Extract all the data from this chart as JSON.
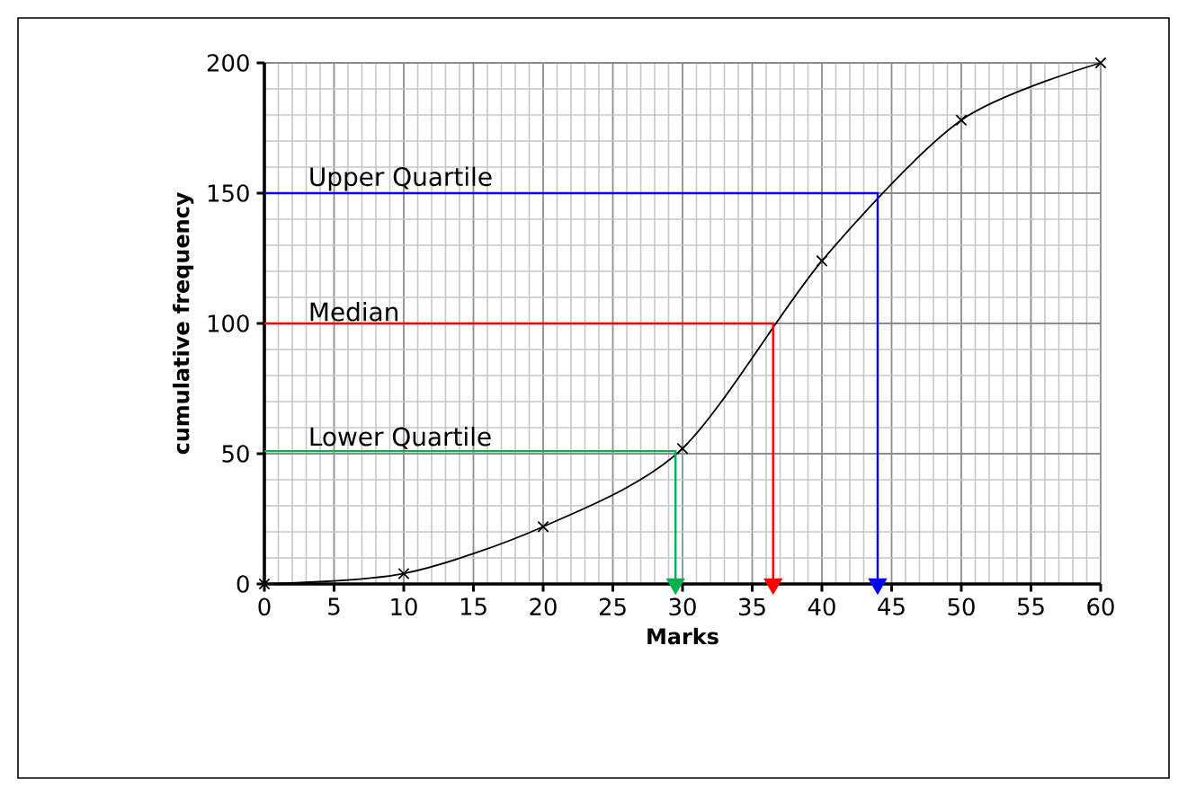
{
  "chart_data": {
    "type": "line",
    "xlabel": "Marks",
    "ylabel": "cumulative frequency",
    "xlim": [
      0,
      60
    ],
    "ylim": [
      0,
      200
    ],
    "xticks": [
      0,
      5,
      10,
      15,
      20,
      25,
      30,
      35,
      40,
      45,
      50,
      55,
      60
    ],
    "yticks": [
      0,
      50,
      100,
      150,
      200
    ],
    "grid": true,
    "series": [
      {
        "color": "#000000",
        "marker": "cross",
        "x": [
          0,
          10,
          20,
          30,
          40,
          50,
          60
        ],
        "values": [
          0,
          4,
          22,
          52,
          124,
          178,
          200
        ]
      },
      {
        "name": "Upper Quartile",
        "color": "#0000ff",
        "marker": "none",
        "x": [
          0,
          44,
          44
        ],
        "values": [
          150,
          150,
          0
        ]
      },
      {
        "name": "Median",
        "color": "#ff0000",
        "marker": "none",
        "x": [
          0,
          36.5,
          36.5
        ],
        "values": [
          100,
          100,
          0
        ]
      },
      {
        "name": "Lower Quartile",
        "color": "#00b050",
        "marker": "none",
        "x": [
          0,
          29.5,
          29.5
        ],
        "values": [
          51,
          51,
          0
        ]
      }
    ]
  }
}
